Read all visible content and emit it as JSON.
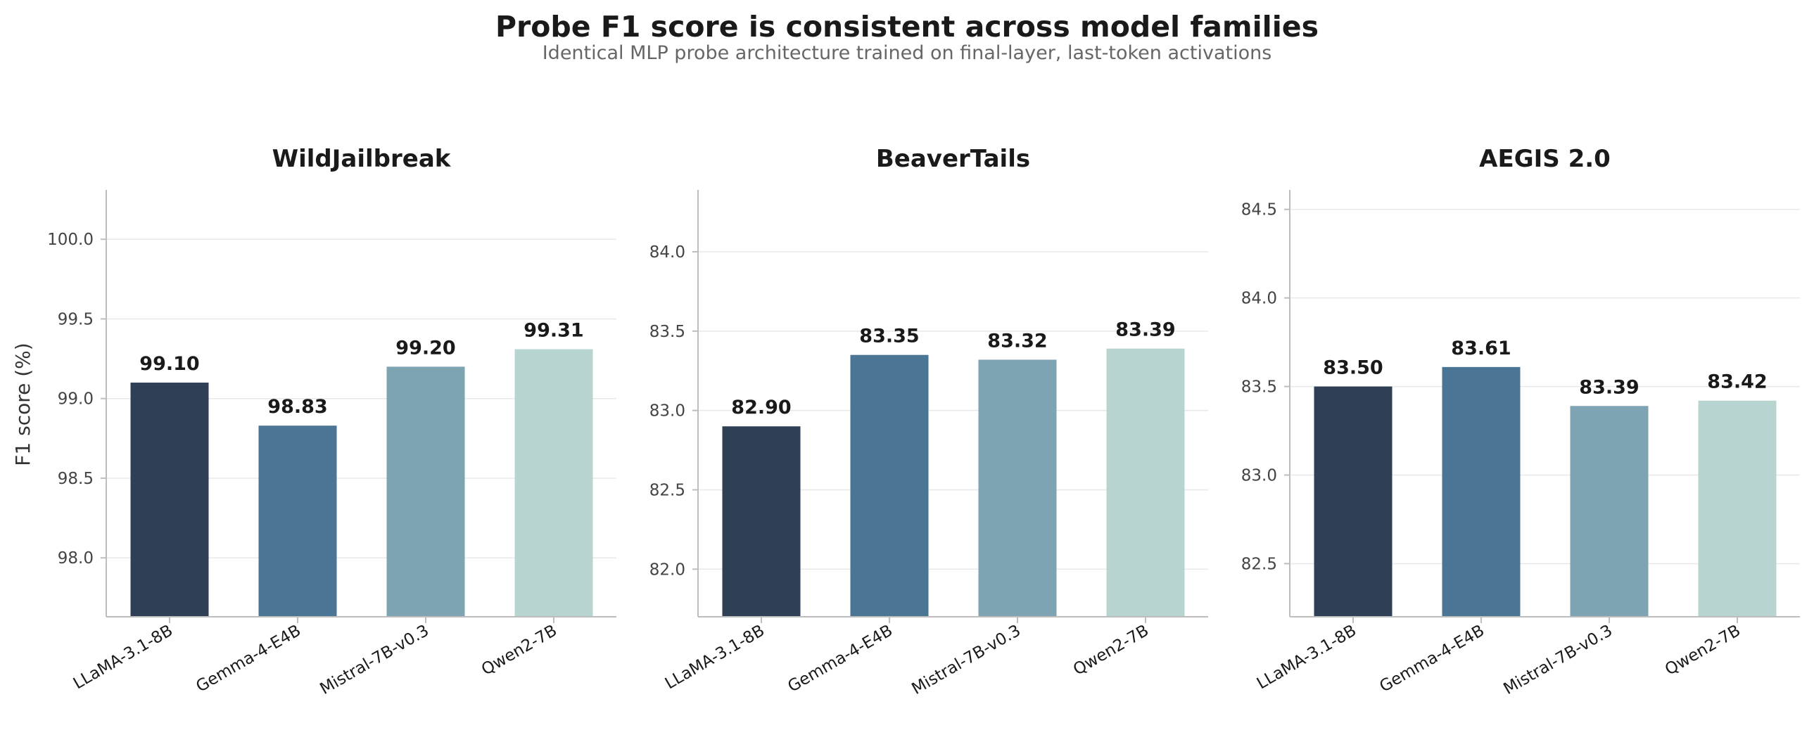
{
  "chart_data": {
    "title": "Probe F1 score is consistent across model families",
    "subtitle": "Identical MLP probe architecture trained on final-layer, last-token activations",
    "ylabel": "F1 score (%)",
    "type": "bar",
    "bar_colors": [
      "#2e3f56",
      "#4a7594",
      "#7ea3b2",
      "#b8d4d0"
    ],
    "categories": [
      "LLaMA-3.1-8B",
      "Gemma-4-E4B",
      "Mistral-7B-v0.3",
      "Qwen2-7B"
    ],
    "grid": "y",
    "panels": [
      {
        "title": "WildJailbreak",
        "values": [
          99.1,
          98.83,
          99.2,
          99.31
        ],
        "value_labels": [
          "99.10",
          "98.83",
          "99.20",
          "99.31"
        ],
        "ylim": [
          97.63,
          100.31
        ],
        "yticks": [
          98.0,
          98.5,
          99.0,
          99.5,
          100.0
        ],
        "ytick_labels": [
          "98.0",
          "98.5",
          "99.0",
          "99.5",
          "100.0"
        ]
      },
      {
        "title": "BeaverTails",
        "values": [
          82.9,
          83.35,
          83.32,
          83.39
        ],
        "value_labels": [
          "82.90",
          "83.35",
          "83.32",
          "83.39"
        ],
        "ylim": [
          81.7,
          84.39
        ],
        "yticks": [
          82.0,
          82.5,
          83.0,
          83.5,
          84.0
        ],
        "ytick_labels": [
          "82.0",
          "82.5",
          "83.0",
          "83.5",
          "84.0"
        ]
      },
      {
        "title": "AEGIS 2.0",
        "values": [
          83.5,
          83.61,
          83.39,
          83.42
        ],
        "value_labels": [
          "83.50",
          "83.61",
          "83.39",
          "83.42"
        ],
        "ylim": [
          82.2,
          84.61
        ],
        "yticks": [
          82.5,
          83.0,
          83.5,
          84.0,
          84.5
        ],
        "ytick_labels": [
          "82.5",
          "83.0",
          "83.5",
          "84.0",
          "84.5"
        ]
      }
    ]
  }
}
